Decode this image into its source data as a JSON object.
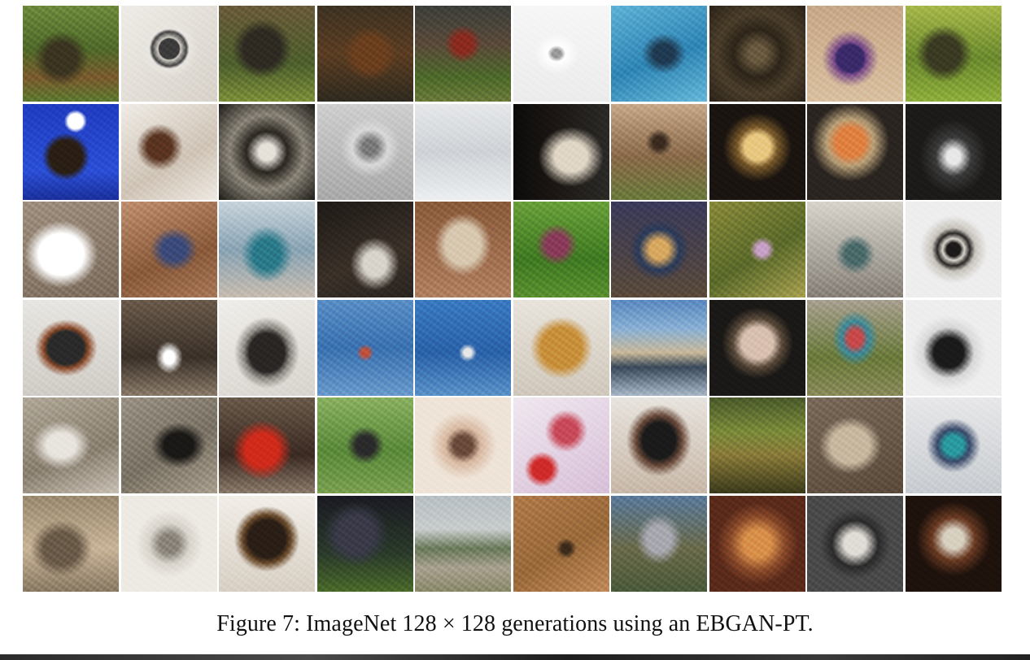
{
  "figure": {
    "caption": "Figure 7:  ImageNet 128 × 128 generations using an EBGAN-PT.",
    "tiles": [
      {
        "bg": "radial-gradient(circle at 40% 55%, #3a3420 0 20%, transparent 35%), linear-gradient(180deg, #6d8a3c 0%, #4f6a2a 45%, #7a5a2e 75%, #5c7a2f 100%)"
      },
      {
        "bg": "radial-gradient(circle at 50% 45%, #3b3b3b 0 14%, #cfcac2 16%, #444 24%, #e9e6e1 28%, transparent 40%), linear-gradient(135deg, #efece7, #d8d2ca)"
      },
      {
        "bg": "radial-gradient(circle at 45% 45%, #2e2a22 0 25%, transparent 40%), linear-gradient(180deg, #6a5a3a, #4d5f2c 60%, #7c8f3a)"
      },
      {
        "bg": "radial-gradient(circle at 55% 50%, #6b3f1e 0 22%, transparent 38%), linear-gradient(180deg, #3d3222, #5b3d22 50%, #2f2a1f)"
      },
      {
        "bg": "radial-gradient(circle at 50% 40%, #8a2a1e 0 12%, transparent 25%), linear-gradient(180deg, #3b3f3a 0%, #5a4a3a 40%, #4d6a2a 75%, #6a7a3a)"
      },
      {
        "bg": "radial-gradient(ellipse at 45% 50%, #9a9a9a 0 6%, #ffffff 12%, transparent 30%), linear-gradient(180deg, #f7f7f7, #ececec)"
      },
      {
        "bg": "radial-gradient(ellipse at 55% 50%, #1f3a52 0 14%, transparent 30%), linear-gradient(160deg, #5fb2d6, #2f86b5 55%, #66b8d8)"
      },
      {
        "bg": "radial-gradient(circle at 50% 50%, #6a5a40 0 12%, #2d2519 35%, #4a3d2a 60%, #2a2218)"
      },
      {
        "bg": "radial-gradient(ellipse at 45% 55%, #3a2a6a 0 18%, #7a4a8a 22%, transparent 38%), linear-gradient(180deg, #c8a888, #d9c0a0)"
      },
      {
        "bg": "radial-gradient(circle at 40% 50%, #3a3a22 0 22%, transparent 38%), linear-gradient(180deg, #a7b84a, #6b8a2e 55%, #8fae3c)"
      },
      {
        "bg": "radial-gradient(circle at 45% 55%, #2a1e14 0 22%, transparent 32%), radial-gradient(circle at 55% 18%, #ffffff 0 8%, transparent 12%), linear-gradient(180deg, #1f3cc0, #2b4fd6 70%, #1a2f9a)"
      },
      {
        "bg": "radial-gradient(circle at 40% 45%, #5a3420 0 16%, transparent 30%), linear-gradient(150deg, #f0ece6, #cfc4b6 60%, #efe9e2)"
      },
      {
        "bg": "radial-gradient(ellipse at 50% 50%, #e6e2da 0 12%, #2a2620 30%, #8a8478 55%, #1e1c18)"
      },
      {
        "bg": "radial-gradient(ellipse at 55% 45%, #7a7a7a 0 10%, #d9d9d9 24%, transparent 40%), linear-gradient(180deg, #cfcfcf, #a9a9a9)"
      },
      {
        "bg": "linear-gradient(180deg, #e6e8ea, #cfd3d7 50%, #eceff1)"
      },
      {
        "bg": "radial-gradient(ellipse at 60% 55%, #e0d6c6 0 20%, transparent 40%), linear-gradient(90deg, #0c0b0a, #1a1512 40%, #2b2a26)"
      },
      {
        "bg": "radial-gradient(circle at 50% 40%, #3a2a1e 0 8%, transparent 18%), linear-gradient(180deg, #c7a989, #8a6a4a 55%, #6a7a3a)"
      },
      {
        "bg": "radial-gradient(circle at 50% 45%, #e8c880 0 18%, #7a5a2a 28%, #1a1410 48%)"
      },
      {
        "bg": "radial-gradient(circle at 45% 40%, #e08040 0 18%, #b8a078 30%, #2a2420 50%)"
      },
      {
        "bg": "radial-gradient(ellipse at 50% 55%, #e8e8e8 0 10%, #3a3a3a 26%, #1c1a18 50%)"
      },
      {
        "bg": "radial-gradient(ellipse at 40% 55%, #ffffff 0 28%, transparent 45%), linear-gradient(160deg, #a09080, #7c6c5c)"
      },
      {
        "bg": "radial-gradient(ellipse at 55% 50%, #3a4a7a 0 16%, transparent 32%), linear-gradient(160deg, #c09070, #8a5a3a 60%, #a87858)"
      },
      {
        "bg": "radial-gradient(ellipse at 50% 55%, #2a7a8a 0 20%, transparent 38%), linear-gradient(180deg, #c8d4dc, #8aa4b4 50%, #c8bcb0)"
      },
      {
        "bg": "radial-gradient(ellipse at 60% 65%, #d8d4cc 0 14%, transparent 30%), linear-gradient(160deg, #1e1a16, #3a3028 60%, #2a2420)"
      },
      {
        "bg": "radial-gradient(ellipse at 50% 45%, #d8c8b0 0 26%, transparent 42%), linear-gradient(180deg, #8a5a3a, #b08060)"
      },
      {
        "bg": "radial-gradient(circle at 45% 45%, #8a3a5a 0 14%, transparent 28%), linear-gradient(180deg, #6aa03a, #3f7a22 60%, #5a9030)"
      },
      {
        "bg": "radial-gradient(ellipse at 50% 50%, #d8a860 0 14%, #2a3a5a 30%, transparent 45%), linear-gradient(180deg, #3a3a5a, #5a4a3a)"
      },
      {
        "bg": "radial-gradient(circle at 55% 50%, #c8a0c8 0 8%, transparent 18%), linear-gradient(150deg, #8a8a3a, #5a6a2a 55%, #a8a050)"
      },
      {
        "bg": "radial-gradient(circle at 50% 55%, #4a6a6a 0 14%, transparent 28%), linear-gradient(180deg, #d8d4cc, #a8a49c 60%, #888078)"
      },
      {
        "bg": "radial-gradient(circle at 50% 50%, #1c1a18 0 10%, #d8d4cc 16%, #2a2826 24%, #c8c4bc 32%, #eeeeee 50%)"
      },
      {
        "bg": "radial-gradient(ellipse at 45% 50%, #2a2a2a 0 24%, #8a4a2a 30%, transparent 42%), linear-gradient(180deg, #e8e6e2, #d0ccc6)"
      },
      {
        "bg": "radial-gradient(ellipse at 50% 60%, #ffffff 0 8%, transparent 20%), linear-gradient(180deg, #6a5a4a, #3a3028 60%, #8a7a68)"
      },
      {
        "bg": "radial-gradient(ellipse at 50% 55%, #2a2624 0 26%, #8a8680 34%, transparent 48%), linear-gradient(160deg, #f0eeea, #d8d4ce)"
      },
      {
        "bg": "radial-gradient(circle at 50% 55%, #c0503a 0 5%, transparent 12%), linear-gradient(180deg, #5a8ec6, #3a72b0 50%, #6a9acc)"
      },
      {
        "bg": "radial-gradient(circle at 55% 55%, #e8e8e8 0 5%, transparent 12%), linear-gradient(180deg, #3a7ac0, #2a62a8 55%, #5a92c8)"
      },
      {
        "bg": "radial-gradient(ellipse at 50% 50%, #c8903a 0 30%, transparent 46%), linear-gradient(180deg, #e8e4dc, #d0c8bc)"
      },
      {
        "bg": "linear-gradient(180deg, #5a8ac0 0%, #8ab0d4 30%, #c8b89a 55%, #3a4a5a 70%, #a8b8c8 100%)"
      },
      {
        "bg": "radial-gradient(circle at 50% 45%, #d8c0b0 0 22%, #5a4a3a 34%, #1a1816 50%)"
      },
      {
        "bg": "radial-gradient(ellipse at 50% 40%, #c8484a 0 10%, #3a8a9a 20%, transparent 34%), linear-gradient(180deg, #a8a090, #6a7a3a 60%, #8a8a5a)"
      },
      {
        "bg": "radial-gradient(ellipse at 45% 55%, #1a1a1a 0 20%, #d8d8d8 34%, #eeeeee 50%)"
      },
      {
        "bg": "radial-gradient(ellipse at 40% 50%, #e8e4de 0 18%, transparent 36%), linear-gradient(160deg, #b0a898, #8a8070 60%, #c8c0b4)"
      },
      {
        "bg": "radial-gradient(ellipse at 60% 50%, #1a1816 0 18%, transparent 34%), linear-gradient(150deg, #9a9284, #7a7264 55%, #a89e8e)"
      },
      {
        "bg": "radial-gradient(ellipse at 45% 55%, #d02a1a 0 22%, transparent 40%), linear-gradient(180deg, #6a5a4a, #3a2a22 60%, #8a7a6a)"
      },
      {
        "bg": "radial-gradient(ellipse at 50% 50%, #2a2a2a 0 14%, transparent 28%), linear-gradient(180deg, #8ab060, #5a8a3a 55%, #7aa050)"
      },
      {
        "bg": "radial-gradient(ellipse at 50% 50%, #6a4a3a 0 14%, #d8b8a0 26%, #efe4d8 50%)"
      },
      {
        "bg": "radial-gradient(circle at 30% 75%, #d02a2a 0 10%, transparent 18%), radial-gradient(circle at 55% 35%, #c84a5a 0 14%, transparent 26%), linear-gradient(150deg, #f0e8f0, #d8c0d8)"
      },
      {
        "bg": "radial-gradient(ellipse at 50% 45%, #1a1a1a 0 24%, #6a4a3a 34%, transparent 48%), linear-gradient(180deg, #e8e4de, #c8b8a8)"
      },
      {
        "bg": "linear-gradient(180deg, #4a5a2a 0%, #7a8a3a 35%, #8a7a3a 60%, #3a3a1a 100%)"
      },
      {
        "bg": "radial-gradient(ellipse at 45% 50%, #c8b8a0 0 26%, transparent 42%), linear-gradient(160deg, #7a6a5a, #5a4a3a)"
      },
      {
        "bg": "radial-gradient(ellipse at 50% 50%, #2a9aa0 0 14%, #3a4a6a 24%, transparent 40%), linear-gradient(180deg, #e8e8ea, #c8ccd0)"
      },
      {
        "bg": "radial-gradient(ellipse at 40% 55%, #6a5a48 0 22%, transparent 38%), linear-gradient(180deg, #9a8a70, #c8b498 55%, #8a7a64)"
      },
      {
        "bg": "radial-gradient(ellipse at 50% 50%, #8a847a 0 14%, #d8d4cc 30%, #eeeae4 50%)"
      },
      {
        "bg": "radial-gradient(circle at 50% 45%, #2a1e16 0 26%, #6a4a2a 34%, transparent 46%), linear-gradient(180deg, #f2eee8, #d8d0c4)"
      },
      {
        "bg": "radial-gradient(ellipse at 40% 40%, #3a3a4a 0 22%, transparent 40%), linear-gradient(180deg, #1a1a22, #2a3a2a 60%, #4a6a2a)"
      },
      {
        "bg": "linear-gradient(180deg, #b8c0c4 0%, #c8cccc 35%, #6a7a5a 55%, #a8a090 75%, #8a8a6a)"
      },
      {
        "bg": "radial-gradient(circle at 55% 55%, #3a2a1a 0 6%, transparent 14%), linear-gradient(150deg, #b07a4a, #9a6a3a 55%, #c08a5a)"
      },
      {
        "bg": "radial-gradient(ellipse at 50% 45%, #a8a8b0 0 18%, transparent 34%), linear-gradient(180deg, #5a7a9a, #6a6a4a 55%, #4a5a3a)"
      },
      {
        "bg": "radial-gradient(ellipse at 50% 50%, #d8904a 0 20%, #8a4a2a 40%, #5a2a1a 60%)"
      },
      {
        "bg": "radial-gradient(ellipse at 50% 50%, #e0dcd6 0 16%, #2a2a2a 34%, #4a4a4a 52%)"
      },
      {
        "bg": "radial-gradient(circle at 50% 45%, #d8d0c0 0 14%, #6a3a22 30%, #1e120c 52%)"
      }
    ]
  }
}
